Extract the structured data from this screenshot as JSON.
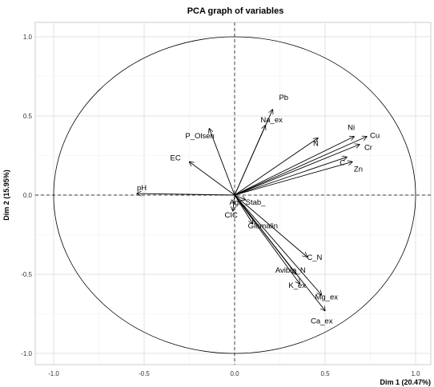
{
  "chart_data": {
    "type": "scatter",
    "subtype": "pca-correlation-circle",
    "title": "PCA graph of variables",
    "xlabel": "Dim 1 (20.47%)",
    "ylabel": "Dim 2 (15.95%)",
    "xlim": [
      -1.0,
      1.0
    ],
    "ylim": [
      -1.0,
      1.0
    ],
    "xticks": [
      "-1.0",
      "-0.5",
      "0.0",
      "0.5",
      "1.0"
    ],
    "yticks": [
      "-1.0",
      "-0.5",
      "0.0",
      "0.5",
      "1.0"
    ],
    "grid": true,
    "variables": [
      {
        "label": "Pb",
        "x": 0.21,
        "y": 0.54
      },
      {
        "label": "Na_ex",
        "x": 0.17,
        "y": 0.44
      },
      {
        "label": "P_Olsen",
        "x": -0.14,
        "y": 0.42
      },
      {
        "label": "EC",
        "x": -0.25,
        "y": 0.21
      },
      {
        "label": "pH",
        "x": -0.54,
        "y": 0.01
      },
      {
        "label": "N",
        "x": 0.46,
        "y": 0.36
      },
      {
        "label": "Ni",
        "x": 0.66,
        "y": 0.37
      },
      {
        "label": "Cu",
        "x": 0.73,
        "y": 0.37
      },
      {
        "label": "Cr",
        "x": 0.69,
        "y": 0.32
      },
      {
        "label": "C",
        "x": 0.62,
        "y": 0.24
      },
      {
        "label": "Zn",
        "x": 0.65,
        "y": 0.21
      },
      {
        "label": "Agr_Stab_",
        "x": 0.06,
        "y": -0.03
      },
      {
        "label": "CIC",
        "x": -0.01,
        "y": -0.1
      },
      {
        "label": "Glomalin",
        "x": 0.1,
        "y": -0.18
      },
      {
        "label": "C_N",
        "x": 0.4,
        "y": -0.39
      },
      {
        "label": "Avible_N",
        "x": 0.34,
        "y": -0.5
      },
      {
        "label": "K_ex",
        "x": 0.36,
        "y": -0.56
      },
      {
        "label": "Mg_ex",
        "x": 0.48,
        "y": -0.63
      },
      {
        "label": "Ca_ex",
        "x": 0.5,
        "y": -0.73
      }
    ]
  }
}
